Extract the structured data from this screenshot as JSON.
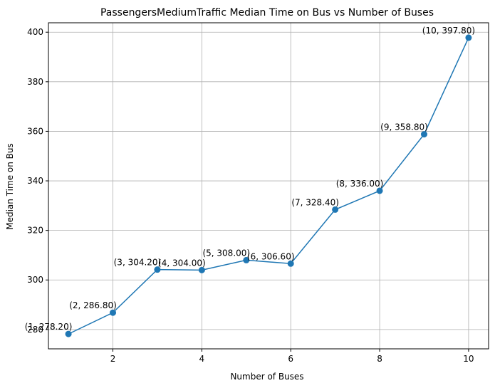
{
  "chart_data": {
    "type": "line",
    "title": "PassengersMediumTraffic Median Time on Bus vs Number of Buses",
    "xlabel": "Number of Buses",
    "ylabel": "Median Time on Bus",
    "xlim": [
      0.55,
      10.45
    ],
    "ylim": [
      272.2,
      403.8
    ],
    "grid": true,
    "x_ticks": [
      2,
      4,
      6,
      8,
      10
    ],
    "y_ticks": [
      280,
      300,
      320,
      340,
      360,
      380,
      400
    ],
    "color": "#1f77b4",
    "x": [
      1,
      2,
      3,
      4,
      5,
      6,
      7,
      8,
      9,
      10
    ],
    "y": [
      278.2,
      286.8,
      304.2,
      304.0,
      308.0,
      306.6,
      328.4,
      336.0,
      358.8,
      397.8
    ],
    "point_labels": [
      "(1, 278.20)",
      "(2, 286.80)",
      "(3, 304.20)",
      "(4, 304.00)",
      "(5, 308.00)",
      "(6, 306.60)",
      "(7, 328.40)",
      "(8, 336.00)",
      "(9, 358.80)",
      "(10, 397.80)"
    ]
  }
}
